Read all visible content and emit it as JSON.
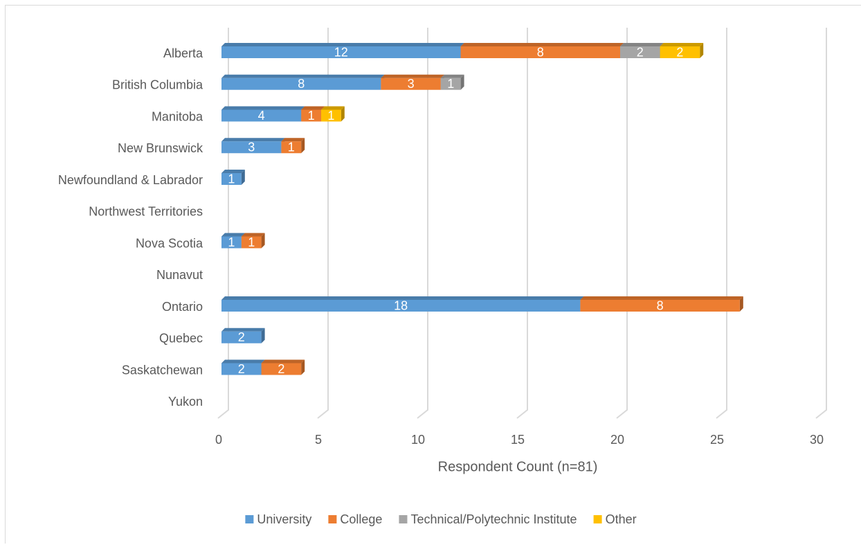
{
  "chart_data": {
    "type": "stacked_bar_horizontal",
    "categories": [
      "Alberta",
      "British Columbia",
      "Manitoba",
      "New Brunswick",
      "Newfoundland & Labrador",
      "Northwest Territories",
      "Nova Scotia",
      "Nunavut",
      "Ontario",
      "Quebec",
      "Saskatchewan",
      "Yukon"
    ],
    "series": [
      {
        "name": "University",
        "color": "#5b9bd5",
        "values": [
          12,
          8,
          4,
          3,
          1,
          null,
          1,
          null,
          18,
          2,
          2,
          null
        ]
      },
      {
        "name": "College",
        "color": "#ed7d31",
        "values": [
          8,
          3,
          1,
          1,
          null,
          null,
          1,
          null,
          8,
          null,
          2,
          null
        ]
      },
      {
        "name": "Technical/Polytechnic Institute",
        "color": "#a5a5a5",
        "values": [
          2,
          1,
          null,
          null,
          null,
          null,
          null,
          null,
          null,
          null,
          null,
          null
        ]
      },
      {
        "name": "Other",
        "color": "#ffc000",
        "values": [
          2,
          null,
          1,
          null,
          null,
          null,
          null,
          null,
          null,
          null,
          null,
          null
        ]
      }
    ],
    "x_label": "Respondent Count (n=81)",
    "xlim": [
      0,
      30
    ],
    "xticks": [
      0,
      5,
      10,
      15,
      20,
      25,
      30
    ],
    "grid": true,
    "legend": "bottom"
  }
}
